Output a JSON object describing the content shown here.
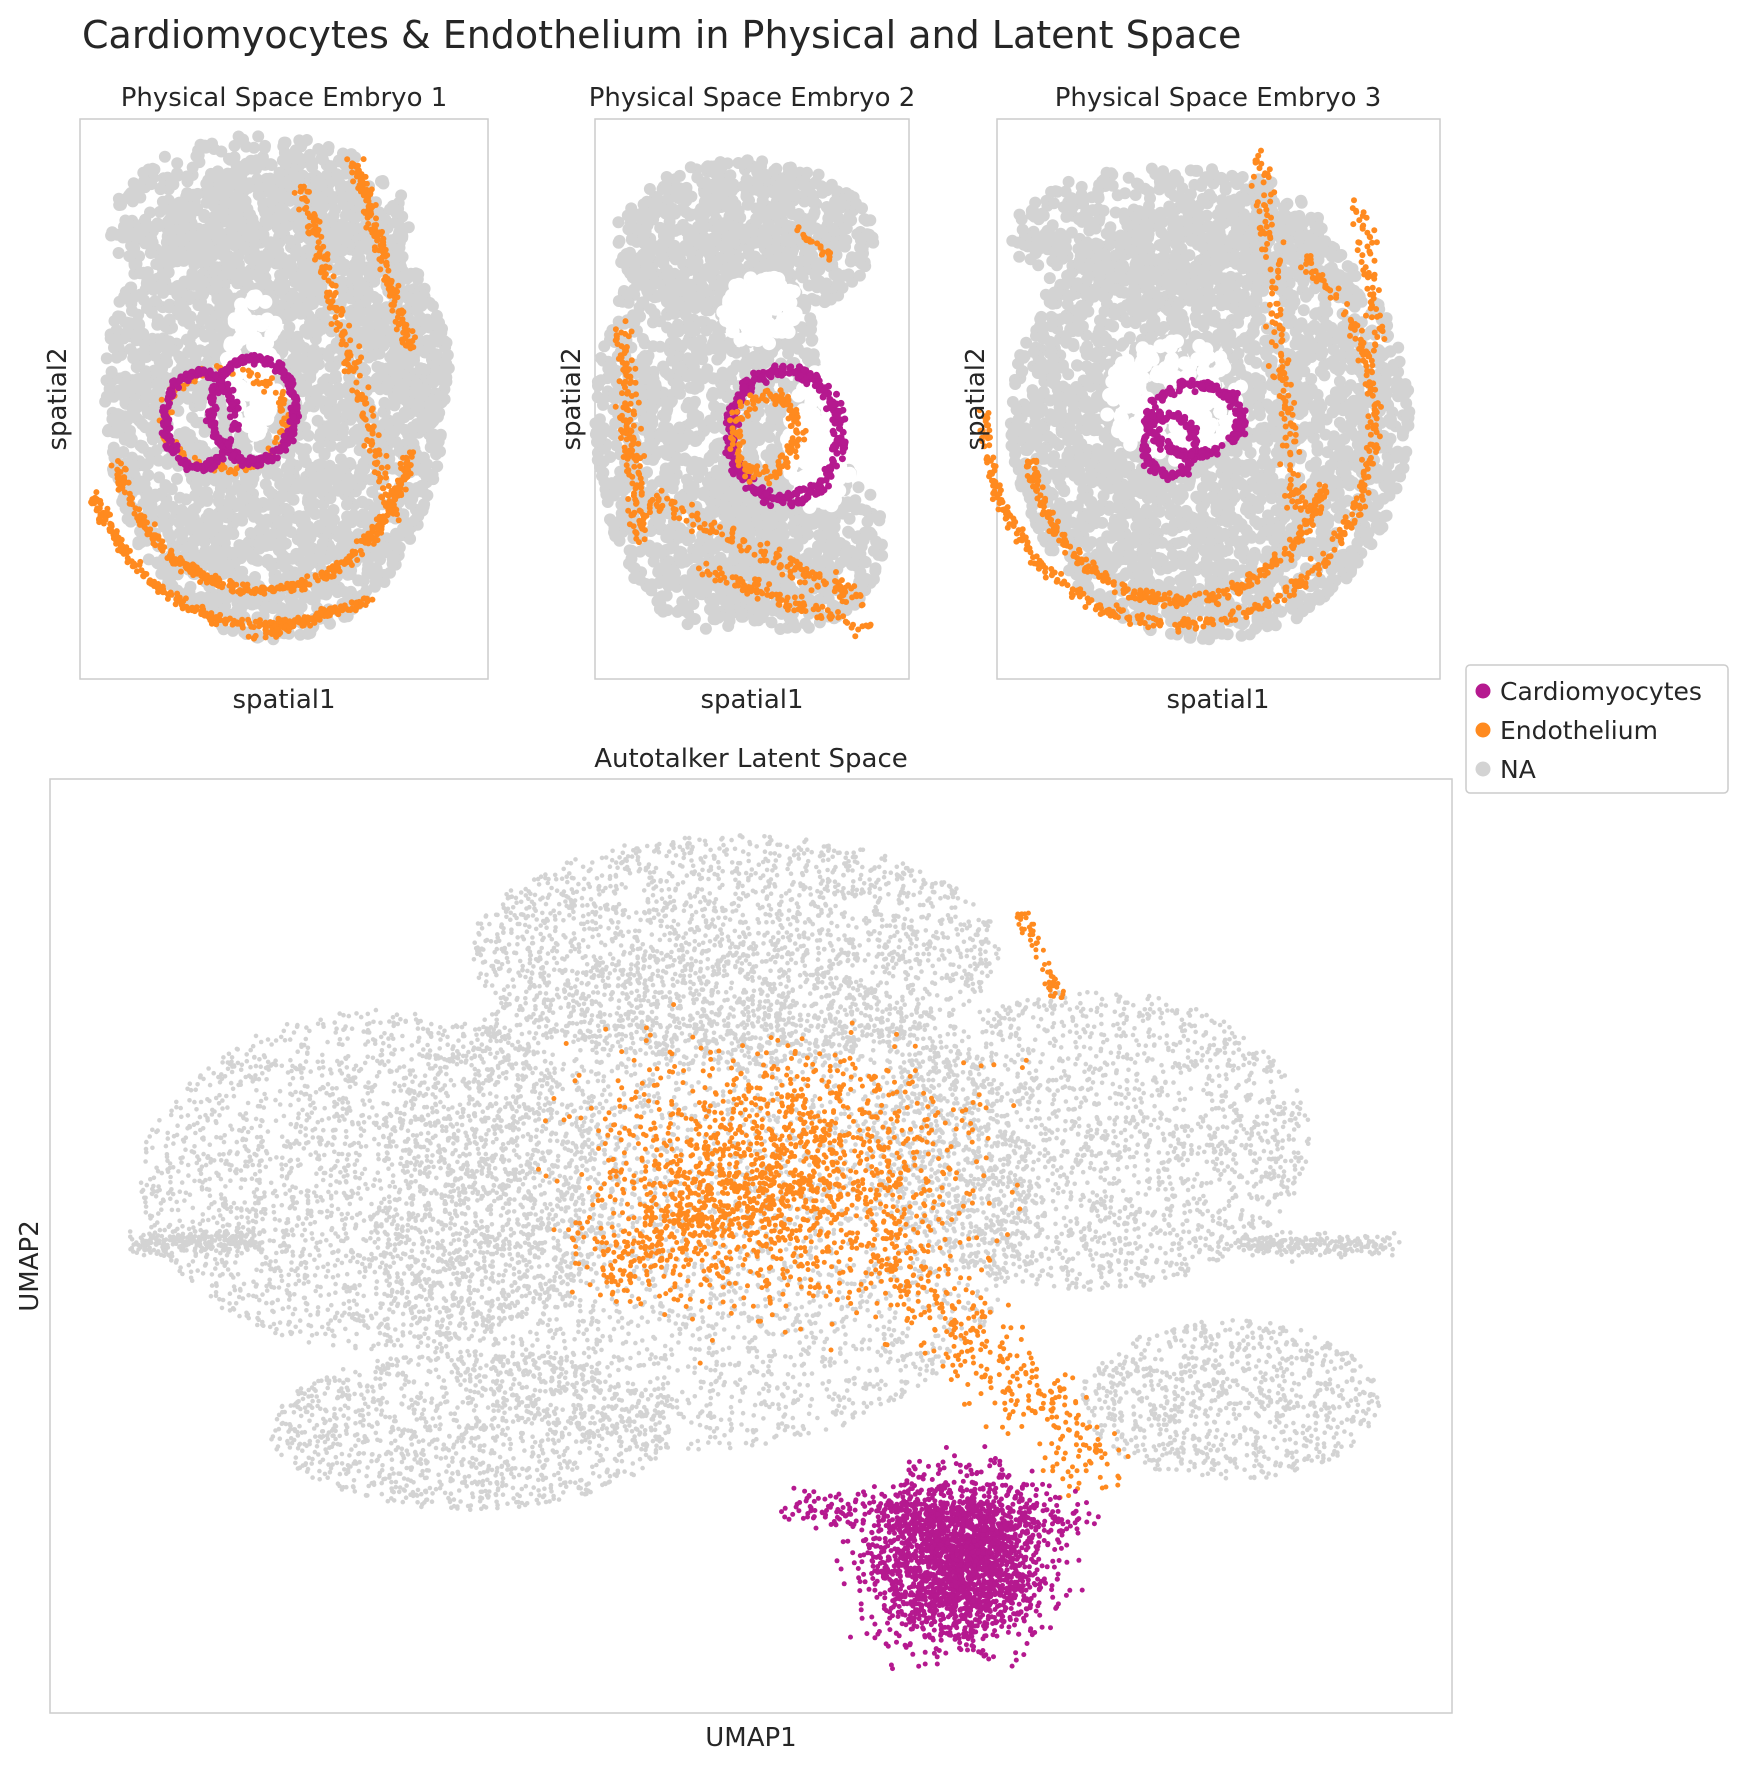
{
  "title": "Cardiomyocytes & Endothelium in Physical and Latent Space",
  "colors": {
    "Cardiomyocytes": "#b5198f",
    "Endothelium": "#ff8a1f",
    "NA": "#d3d3d3",
    "frame": "#cccccc"
  },
  "legend": {
    "placement": "right",
    "entries": [
      "Cardiomyocytes",
      "Endothelium",
      "NA"
    ]
  },
  "chart_data": [
    {
      "type": "scatter",
      "title": "Physical Space Embryo 1",
      "xlabel": "spatial1",
      "ylabel": "spatial2",
      "grid": false,
      "ticks": false,
      "categories": [
        "Cardiomyocytes",
        "Endothelium",
        "NA"
      ],
      "note": "individual point coordinates not recoverable; spatial layout: NA tissue body, cardiomyocyte ring near centre, endothelium arcs"
    },
    {
      "type": "scatter",
      "title": "Physical Space Embryo 2",
      "xlabel": "spatial1",
      "ylabel": "spatial2",
      "grid": false,
      "ticks": false,
      "categories": [
        "Cardiomyocytes",
        "Endothelium",
        "NA"
      ]
    },
    {
      "type": "scatter",
      "title": "Physical Space Embryo 3",
      "xlabel": "spatial1",
      "ylabel": "spatial2",
      "grid": false,
      "ticks": false,
      "categories": [
        "Cardiomyocytes",
        "Endothelium",
        "NA"
      ]
    },
    {
      "type": "scatter",
      "title": "Autotalker Latent Space",
      "xlabel": "UMAP1",
      "ylabel": "UMAP2",
      "grid": false,
      "ticks": false,
      "categories": [
        "Cardiomyocytes",
        "Endothelium",
        "NA"
      ]
    }
  ]
}
